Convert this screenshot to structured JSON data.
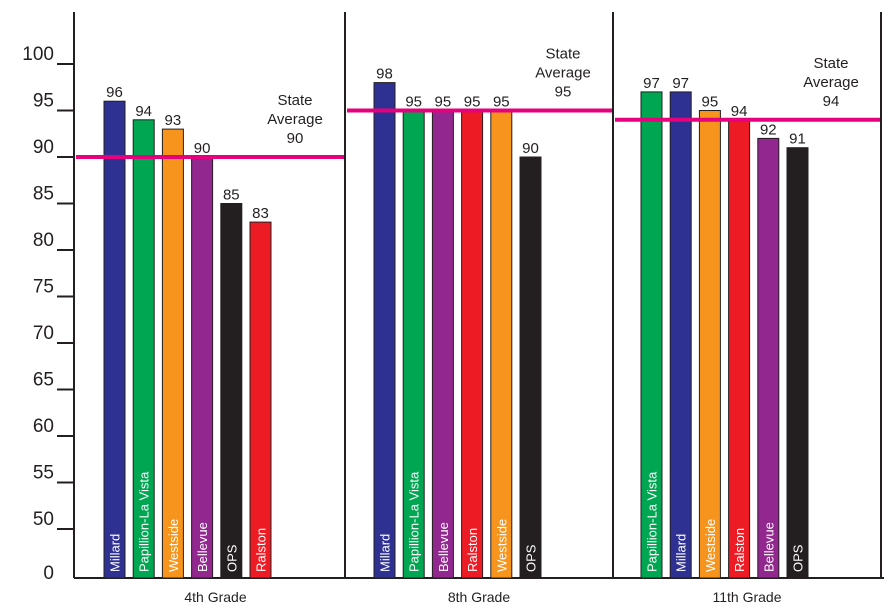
{
  "chart_data": {
    "type": "bar",
    "y_ticks": [
      "100",
      "95",
      "90",
      "85",
      "80",
      "75",
      "70",
      "65",
      "60",
      "55",
      "50",
      "0"
    ],
    "ylim": [
      0,
      100
    ],
    "grid": false,
    "colors": {
      "Millard": "#2e3192",
      "Papillion-La Vista": "#00a651",
      "Westside": "#f7941d",
      "Bellevue": "#92278f",
      "OPS": "#231f20",
      "Ralston": "#ed1c24",
      "state_average_line": "#e6007e"
    },
    "groups": [
      {
        "label": "4th Grade",
        "state_average": {
          "title": "State",
          "subtitle": "Average",
          "value": 90,
          "value_text": "90"
        },
        "bars": [
          {
            "name": "Millard",
            "value": 96,
            "value_text": "96"
          },
          {
            "name": "Papillion-La Vista",
            "value": 94,
            "value_text": "94"
          },
          {
            "name": "Westside",
            "value": 93,
            "value_text": "93"
          },
          {
            "name": "Bellevue",
            "value": 90,
            "value_text": "90"
          },
          {
            "name": "OPS",
            "value": 85,
            "value_text": "85"
          },
          {
            "name": "Ralston",
            "value": 83,
            "value_text": "83"
          }
        ]
      },
      {
        "label": "8th Grade",
        "state_average": {
          "title": "State",
          "subtitle": "Average",
          "value": 95,
          "value_text": "95"
        },
        "bars": [
          {
            "name": "Millard",
            "value": 98,
            "value_text": "98"
          },
          {
            "name": "Papillion-La Vista",
            "value": 95,
            "value_text": "95"
          },
          {
            "name": "Bellevue",
            "value": 95,
            "value_text": "95"
          },
          {
            "name": "Ralston",
            "value": 95,
            "value_text": "95"
          },
          {
            "name": "Westside",
            "value": 95,
            "value_text": "95"
          },
          {
            "name": "OPS",
            "value": 90,
            "value_text": "90"
          }
        ]
      },
      {
        "label": "11th Grade",
        "state_average": {
          "title": "State",
          "subtitle": "Average",
          "value": 94,
          "value_text": "94"
        },
        "bars": [
          {
            "name": "Papillion-La Vista",
            "value": 97,
            "value_text": "97"
          },
          {
            "name": "Millard",
            "value": 97,
            "value_text": "97"
          },
          {
            "name": "Westside",
            "value": 95,
            "value_text": "95"
          },
          {
            "name": "Ralston",
            "value": 94,
            "value_text": "94"
          },
          {
            "name": "Bellevue",
            "value": 92,
            "value_text": "92"
          },
          {
            "name": "OPS",
            "value": 91,
            "value_text": "91"
          }
        ]
      }
    ]
  }
}
